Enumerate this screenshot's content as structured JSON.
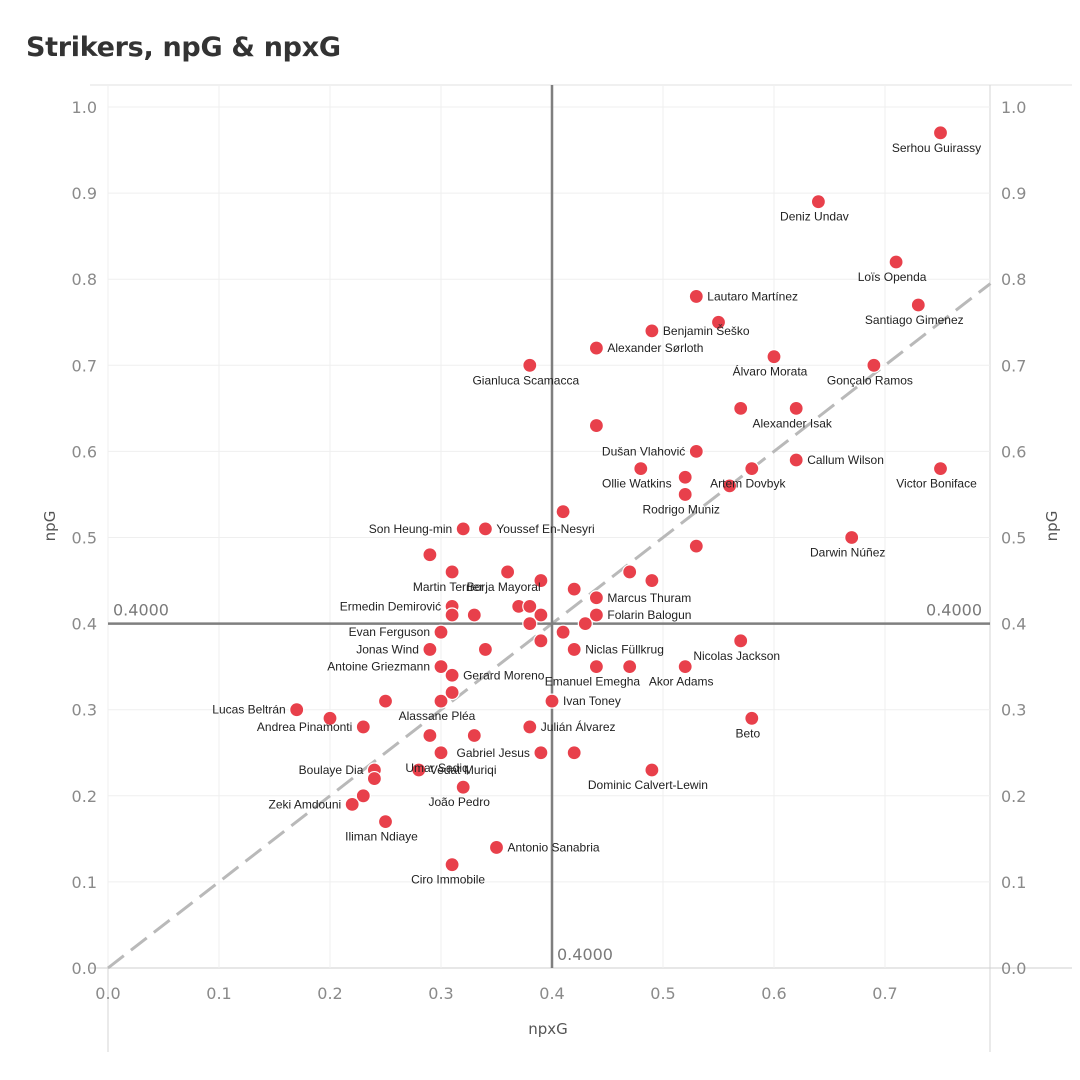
{
  "chart_data": {
    "type": "scatter",
    "title": "Strikers, npG & npxG",
    "xlabel": "npxG",
    "ylabel": "npG",
    "xlim": [
      0,
      0.8
    ],
    "ylim": [
      0,
      1.0
    ],
    "x_ticks": [
      "0.0",
      "0.1",
      "0.2",
      "0.3",
      "0.4",
      "0.5",
      "0.6",
      "0.7"
    ],
    "y_ticks": [
      "0.0",
      "0.1",
      "0.2",
      "0.3",
      "0.4",
      "0.5",
      "0.6",
      "0.7",
      "0.8",
      "0.9",
      "1.0"
    ],
    "grid": true,
    "diagonal_reference": "y = x",
    "reference_lines": {
      "x": 0.4,
      "x_label": "0.4000",
      "y": 0.4,
      "y_label_left": "0.4000",
      "y_label_right": "0.4000"
    },
    "point_color": "#e8404b",
    "points": [
      {
        "x": 0.75,
        "y": 0.97,
        "label": "Serhou Guirassy"
      },
      {
        "x": 0.64,
        "y": 0.89,
        "label": "Deniz Undav"
      },
      {
        "x": 0.71,
        "y": 0.82,
        "label": "Loïs Openda"
      },
      {
        "x": 0.73,
        "y": 0.77,
        "label": "Santiago Gimenez"
      },
      {
        "x": 0.53,
        "y": 0.78,
        "label": "Lautaro Martínez"
      },
      {
        "x": 0.55,
        "y": 0.75,
        "label": ""
      },
      {
        "x": 0.49,
        "y": 0.74,
        "label": "Benjamin Šeško"
      },
      {
        "x": 0.44,
        "y": 0.72,
        "label": "Alexander Sørloth"
      },
      {
        "x": 0.38,
        "y": 0.7,
        "label": "Gianluca Scamacca"
      },
      {
        "x": 0.6,
        "y": 0.71,
        "label": "Álvaro Morata"
      },
      {
        "x": 0.69,
        "y": 0.7,
        "label": "Gonçalo Ramos"
      },
      {
        "x": 0.57,
        "y": 0.65,
        "label": ""
      },
      {
        "x": 0.62,
        "y": 0.65,
        "label": "Alexander Isak"
      },
      {
        "x": 0.44,
        "y": 0.63,
        "label": ""
      },
      {
        "x": 0.53,
        "y": 0.6,
        "label": "Dušan Vlahović"
      },
      {
        "x": 0.62,
        "y": 0.59,
        "label": "Callum Wilson"
      },
      {
        "x": 0.48,
        "y": 0.58,
        "label": "Ollie Watkins"
      },
      {
        "x": 0.52,
        "y": 0.57,
        "label": ""
      },
      {
        "x": 0.58,
        "y": 0.58,
        "label": "Artem Dovbyk"
      },
      {
        "x": 0.56,
        "y": 0.56,
        "label": ""
      },
      {
        "x": 0.75,
        "y": 0.58,
        "label": "Victor Boniface"
      },
      {
        "x": 0.52,
        "y": 0.55,
        "label": "Rodrigo Muniz"
      },
      {
        "x": 0.41,
        "y": 0.53,
        "label": ""
      },
      {
        "x": 0.32,
        "y": 0.51,
        "label": "Son Heung-min"
      },
      {
        "x": 0.34,
        "y": 0.51,
        "label": "Youssef En-Nesyri"
      },
      {
        "x": 0.67,
        "y": 0.5,
        "label": "Darwin Núñez"
      },
      {
        "x": 0.53,
        "y": 0.49,
        "label": ""
      },
      {
        "x": 0.29,
        "y": 0.48,
        "label": ""
      },
      {
        "x": 0.31,
        "y": 0.46,
        "label": "Martin Terrier"
      },
      {
        "x": 0.36,
        "y": 0.46,
        "label": "Borja Mayoral"
      },
      {
        "x": 0.39,
        "y": 0.45,
        "label": ""
      },
      {
        "x": 0.47,
        "y": 0.46,
        "label": ""
      },
      {
        "x": 0.49,
        "y": 0.45,
        "label": ""
      },
      {
        "x": 0.42,
        "y": 0.44,
        "label": ""
      },
      {
        "x": 0.44,
        "y": 0.43,
        "label": "Marcus Thuram"
      },
      {
        "x": 0.31,
        "y": 0.42,
        "label": "Ermedin Demirović"
      },
      {
        "x": 0.37,
        "y": 0.42,
        "label": ""
      },
      {
        "x": 0.38,
        "y": 0.42,
        "label": ""
      },
      {
        "x": 0.31,
        "y": 0.41,
        "label": ""
      },
      {
        "x": 0.33,
        "y": 0.41,
        "label": ""
      },
      {
        "x": 0.39,
        "y": 0.41,
        "label": ""
      },
      {
        "x": 0.44,
        "y": 0.41,
        "label": "Folarin Balogun"
      },
      {
        "x": 0.38,
        "y": 0.4,
        "label": ""
      },
      {
        "x": 0.43,
        "y": 0.4,
        "label": ""
      },
      {
        "x": 0.3,
        "y": 0.39,
        "label": "Evan Ferguson"
      },
      {
        "x": 0.41,
        "y": 0.39,
        "label": ""
      },
      {
        "x": 0.39,
        "y": 0.38,
        "label": ""
      },
      {
        "x": 0.57,
        "y": 0.38,
        "label": "Nicolas Jackson"
      },
      {
        "x": 0.29,
        "y": 0.37,
        "label": "Jonas Wind"
      },
      {
        "x": 0.34,
        "y": 0.37,
        "label": ""
      },
      {
        "x": 0.42,
        "y": 0.37,
        "label": "Niclas Füllkrug"
      },
      {
        "x": 0.3,
        "y": 0.35,
        "label": "Antoine Griezmann"
      },
      {
        "x": 0.44,
        "y": 0.35,
        "label": "Emanuel Emegha"
      },
      {
        "x": 0.47,
        "y": 0.35,
        "label": ""
      },
      {
        "x": 0.52,
        "y": 0.35,
        "label": "Akor Adams"
      },
      {
        "x": 0.31,
        "y": 0.34,
        "label": "Gerard Moreno"
      },
      {
        "x": 0.31,
        "y": 0.32,
        "label": ""
      },
      {
        "x": 0.25,
        "y": 0.31,
        "label": ""
      },
      {
        "x": 0.3,
        "y": 0.31,
        "label": "Alassane Pléa"
      },
      {
        "x": 0.4,
        "y": 0.31,
        "label": "Ivan Toney"
      },
      {
        "x": 0.17,
        "y": 0.3,
        "label": "Lucas Beltrán"
      },
      {
        "x": 0.2,
        "y": 0.29,
        "label": ""
      },
      {
        "x": 0.58,
        "y": 0.29,
        "label": "Beto"
      },
      {
        "x": 0.23,
        "y": 0.28,
        "label": "Andrea Pinamonti"
      },
      {
        "x": 0.38,
        "y": 0.28,
        "label": "Julián Álvarez"
      },
      {
        "x": 0.29,
        "y": 0.27,
        "label": ""
      },
      {
        "x": 0.33,
        "y": 0.27,
        "label": ""
      },
      {
        "x": 0.3,
        "y": 0.25,
        "label": "Umar Sadiq"
      },
      {
        "x": 0.39,
        "y": 0.25,
        "label": "Gabriel Jesus"
      },
      {
        "x": 0.42,
        "y": 0.25,
        "label": ""
      },
      {
        "x": 0.24,
        "y": 0.23,
        "label": "Boulaye Dia"
      },
      {
        "x": 0.28,
        "y": 0.23,
        "label": "Vedat Muriqi"
      },
      {
        "x": 0.49,
        "y": 0.23,
        "label": "Dominic Calvert-Lewin"
      },
      {
        "x": 0.24,
        "y": 0.22,
        "label": ""
      },
      {
        "x": 0.32,
        "y": 0.21,
        "label": "João Pedro"
      },
      {
        "x": 0.23,
        "y": 0.2,
        "label": ""
      },
      {
        "x": 0.22,
        "y": 0.19,
        "label": "Zeki Amdouni"
      },
      {
        "x": 0.25,
        "y": 0.17,
        "label": "Iliman Ndiaye"
      },
      {
        "x": 0.35,
        "y": 0.14,
        "label": "Antonio Sanabria"
      },
      {
        "x": 0.31,
        "y": 0.12,
        "label": "Ciro Immobile"
      }
    ]
  }
}
